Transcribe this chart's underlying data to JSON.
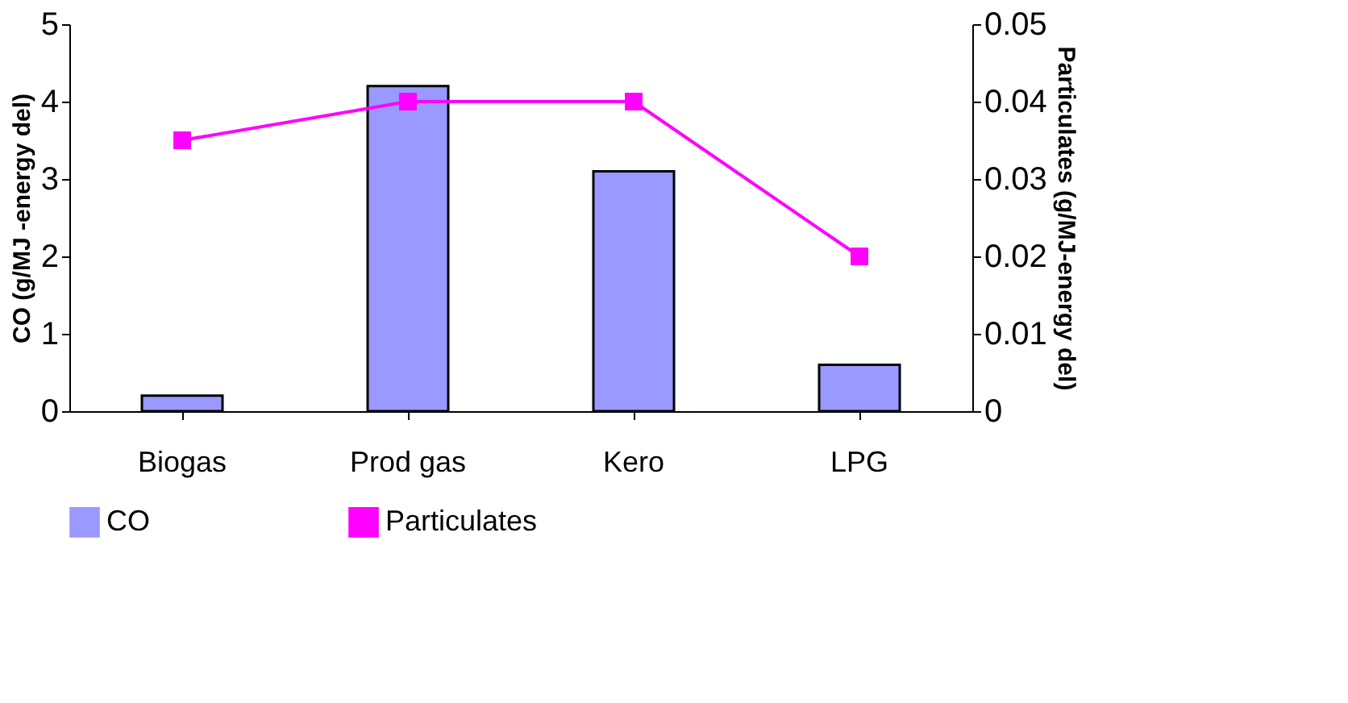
{
  "chart_data": {
    "type": "bar",
    "categories": [
      "Biogas",
      "Prod gas",
      "Kero",
      "LPG"
    ],
    "ylabel": "CO (g/MJ -energy del)",
    "y2label": "Particulates (g/MJ-energy del)",
    "series": [
      {
        "name": "CO",
        "color": "#9999ff",
        "values": [
          0.2,
          4.2,
          3.1,
          0.6
        ]
      },
      {
        "name": "Particulates",
        "type": "line",
        "axis": "y2",
        "color": "#ff00ff",
        "marker": "square",
        "values": [
          0.035,
          0.04,
          0.04,
          0.02
        ]
      }
    ],
    "ylim": [
      0,
      5
    ],
    "yticks": [
      0,
      1,
      2,
      3,
      4,
      5
    ],
    "y2lim": [
      0,
      0.05
    ],
    "y2ticks": [
      0,
      0.01,
      0.02,
      0.03,
      0.04,
      0.05
    ],
    "grid": false,
    "legend": "bottom"
  }
}
